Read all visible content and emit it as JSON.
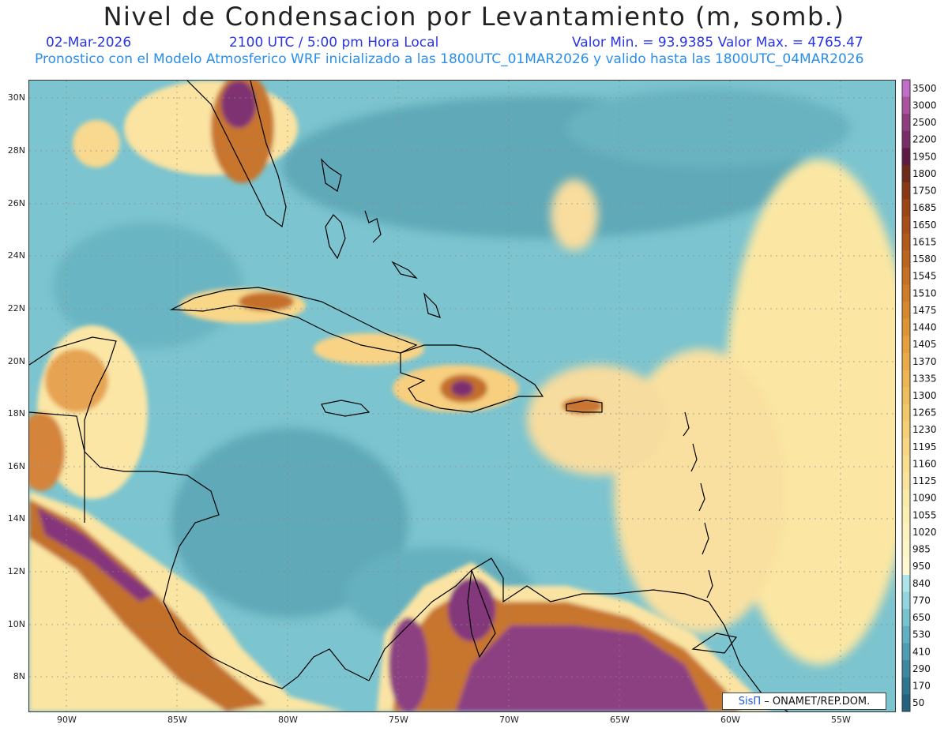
{
  "header": {
    "title": "Nivel de Condensacion por Levantamiento (m, somb.)",
    "date": "02-Mar-2026",
    "time": "2100 UTC / 5:00 pm Hora Local",
    "minmax": "Valor Min. = 93.9385   Valor Max. = 4765.47",
    "model_line": "Pronostico con el Modelo Atmosferico WRF inicializado a las 1800UTC_01MAR2026 y valido hasta las  1800UTC_04MAR2026"
  },
  "axes": {
    "lat_labels": [
      "30N",
      "28N",
      "26N",
      "24N",
      "22N",
      "20N",
      "18N",
      "16N",
      "14N",
      "12N",
      "10N",
      "8N"
    ],
    "lon_labels": [
      "90W",
      "85W",
      "80W",
      "75W",
      "70W",
      "65W",
      "60W",
      "55W"
    ]
  },
  "colorbar": {
    "labels": [
      "3500",
      "3000",
      "2500",
      "2200",
      "1950",
      "1800",
      "1750",
      "1685",
      "1650",
      "1615",
      "1580",
      "1545",
      "1510",
      "1475",
      "1440",
      "1405",
      "1370",
      "1335",
      "1300",
      "1265",
      "1230",
      "1195",
      "1160",
      "1125",
      "1090",
      "1055",
      "1020",
      "985",
      "950",
      "840",
      "770",
      "650",
      "530",
      "410",
      "290",
      "170",
      "50"
    ],
    "colors": [
      "#c06ec8",
      "#a9539f",
      "#8e3d80",
      "#7a2e68",
      "#5e1a44",
      "#6e2a1a",
      "#8a3a12",
      "#9c4515",
      "#a84f18",
      "#b3591a",
      "#be651d",
      "#c77021",
      "#d07c26",
      "#d7882c",
      "#dd9433",
      "#e3a03d",
      "#e8ab47",
      "#ecb552",
      "#efbe5c",
      "#f2c768",
      "#f4cf74",
      "#f6d682",
      "#f8dd8f",
      "#f9e39c",
      "#faeaa9",
      "#fbefb4",
      "#fcf3bf",
      "#fdf6c8",
      "#fef9d1",
      "#aee3ea",
      "#93d4df",
      "#79c2d0",
      "#62afc1",
      "#4e9cb1",
      "#3d88a0",
      "#2f7590",
      "#246380"
    ]
  },
  "credit": {
    "brand": "SisΠ",
    "text": "– ONAMET/REP.DOM."
  },
  "map_colors": {
    "ocean_base": "#7cc4cf",
    "land_warm": "#fde9a8",
    "land_hot": "#c9711e",
    "land_peak": "#8a3d7e",
    "coast": "#000000"
  }
}
